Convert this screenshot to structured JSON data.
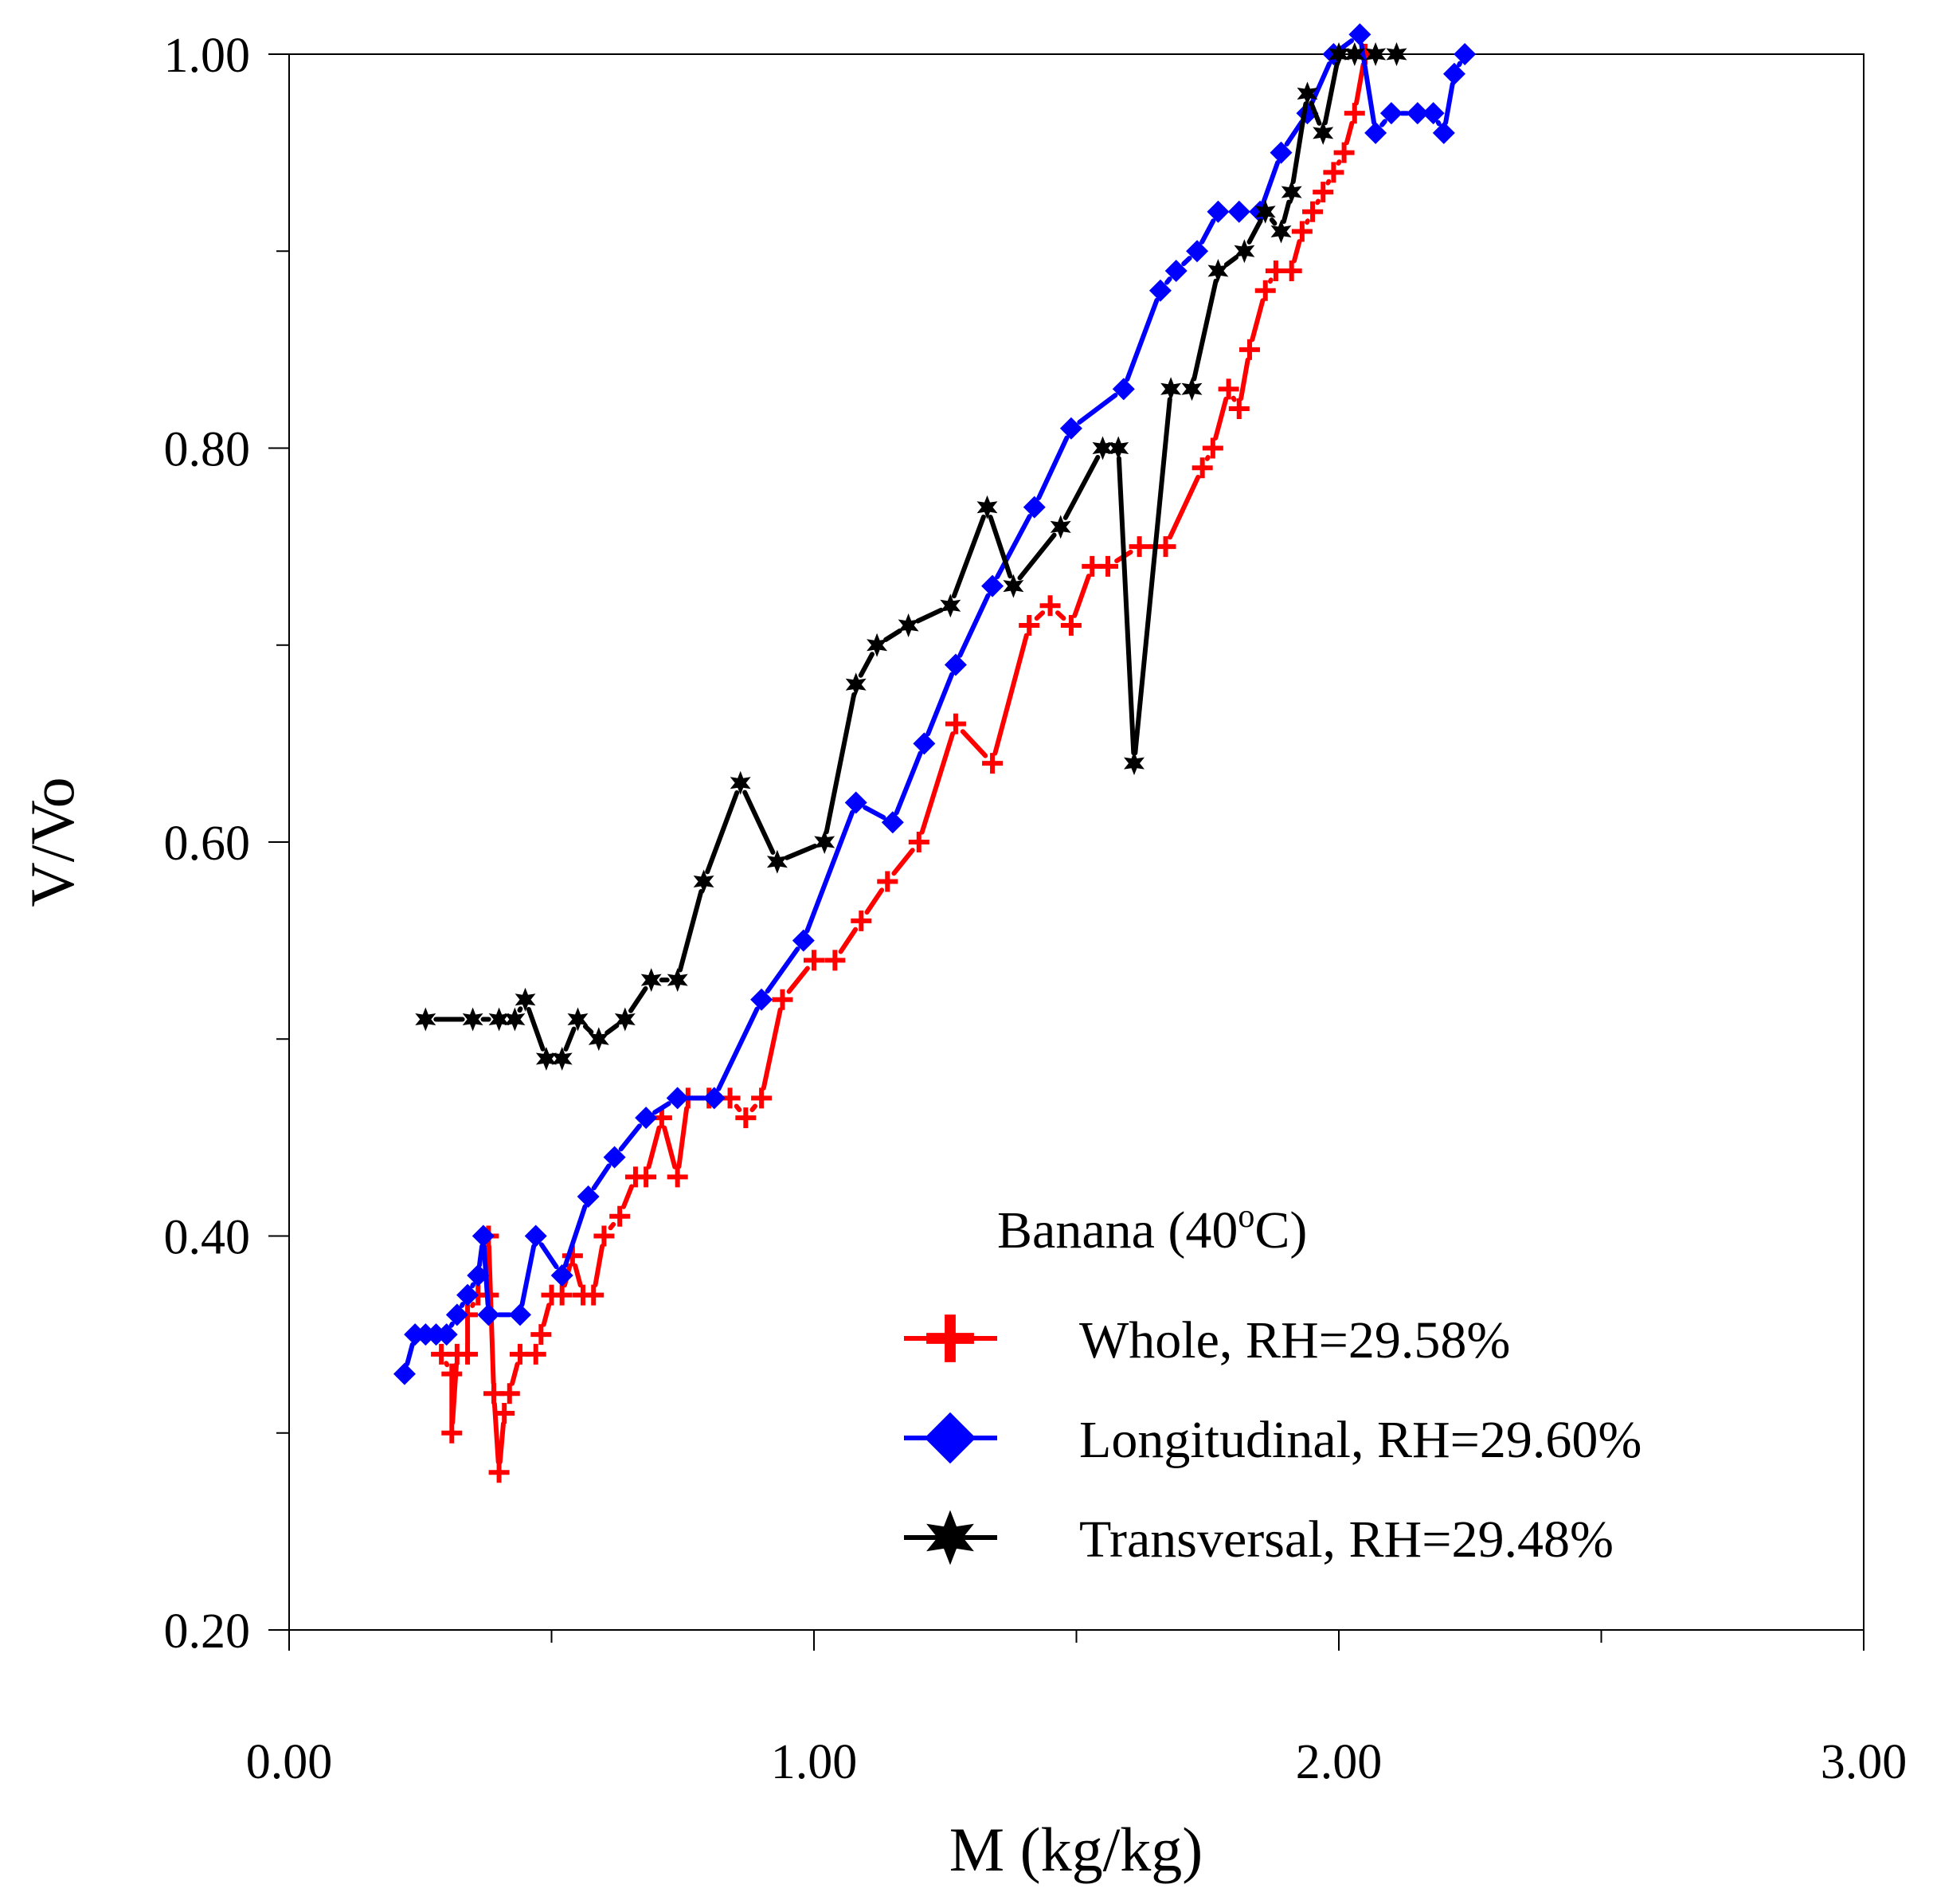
{
  "chart_data": {
    "type": "line",
    "title": "",
    "xlabel": "M (kg/kg)",
    "ylabel": "V/Vo",
    "xlim": [
      0,
      3
    ],
    "ylim": [
      0.2,
      1.0
    ],
    "x_ticks": [
      0,
      1,
      2,
      3
    ],
    "x_tick_labels": [
      "0.00",
      "1.00",
      "2.00",
      "3.00"
    ],
    "y_ticks": [
      0.2,
      0.4,
      0.6,
      0.8,
      1.0
    ],
    "y_tick_labels": [
      "0.20",
      "0.40",
      "0.60",
      "0.80",
      "1.00"
    ],
    "grid": false,
    "legend": {
      "position": "bottom-right",
      "title_main": "Banana (40",
      "title_sup": "o",
      "title_end": "C)"
    },
    "series": [
      {
        "name": "Whole, RH=29.58%",
        "color": "#ff0000",
        "marker": "plus",
        "points": [
          [
            0.29,
            0.34
          ],
          [
            0.31,
            0.33
          ],
          [
            0.31,
            0.3
          ],
          [
            0.32,
            0.34
          ],
          [
            0.34,
            0.34
          ],
          [
            0.34,
            0.36
          ],
          [
            0.36,
            0.37
          ],
          [
            0.38,
            0.37
          ],
          [
            0.38,
            0.4
          ],
          [
            0.39,
            0.32
          ],
          [
            0.4,
            0.28
          ],
          [
            0.41,
            0.31
          ],
          [
            0.42,
            0.32
          ],
          [
            0.44,
            0.34
          ],
          [
            0.47,
            0.34
          ],
          [
            0.48,
            0.35
          ],
          [
            0.5,
            0.37
          ],
          [
            0.52,
            0.37
          ],
          [
            0.54,
            0.39
          ],
          [
            0.56,
            0.37
          ],
          [
            0.58,
            0.37
          ],
          [
            0.6,
            0.4
          ],
          [
            0.63,
            0.41
          ],
          [
            0.66,
            0.43
          ],
          [
            0.68,
            0.43
          ],
          [
            0.71,
            0.46
          ],
          [
            0.74,
            0.43
          ],
          [
            0.76,
            0.47
          ],
          [
            0.8,
            0.47
          ],
          [
            0.84,
            0.47
          ],
          [
            0.87,
            0.46
          ],
          [
            0.9,
            0.47
          ],
          [
            0.94,
            0.52
          ],
          [
            1.0,
            0.54
          ],
          [
            1.04,
            0.54
          ],
          [
            1.09,
            0.56
          ],
          [
            1.14,
            0.58
          ],
          [
            1.2,
            0.6
          ],
          [
            1.27,
            0.66
          ],
          [
            1.34,
            0.64
          ],
          [
            1.41,
            0.71
          ],
          [
            1.45,
            0.72
          ],
          [
            1.49,
            0.71
          ],
          [
            1.53,
            0.74
          ],
          [
            1.56,
            0.74
          ],
          [
            1.62,
            0.75
          ],
          [
            1.67,
            0.75
          ],
          [
            1.74,
            0.79
          ],
          [
            1.76,
            0.8
          ],
          [
            1.79,
            0.83
          ],
          [
            1.81,
            0.82
          ],
          [
            1.83,
            0.85
          ],
          [
            1.86,
            0.88
          ],
          [
            1.88,
            0.89
          ],
          [
            1.91,
            0.89
          ],
          [
            1.93,
            0.91
          ],
          [
            1.95,
            0.92
          ],
          [
            1.97,
            0.93
          ],
          [
            1.99,
            0.94
          ],
          [
            2.01,
            0.95
          ],
          [
            2.03,
            0.97
          ],
          [
            2.05,
            1.0
          ]
        ]
      },
      {
        "name": "Longitudinal, RH=29.60%",
        "color": "#0000ff",
        "marker": "diamond",
        "points": [
          [
            0.22,
            0.33
          ],
          [
            0.24,
            0.35
          ],
          [
            0.26,
            0.35
          ],
          [
            0.28,
            0.35
          ],
          [
            0.3,
            0.35
          ],
          [
            0.32,
            0.36
          ],
          [
            0.34,
            0.37
          ],
          [
            0.36,
            0.38
          ],
          [
            0.37,
            0.4
          ],
          [
            0.38,
            0.36
          ],
          [
            0.44,
            0.36
          ],
          [
            0.47,
            0.4
          ],
          [
            0.52,
            0.38
          ],
          [
            0.57,
            0.42
          ],
          [
            0.62,
            0.44
          ],
          [
            0.68,
            0.46
          ],
          [
            0.74,
            0.47
          ],
          [
            0.81,
            0.47
          ],
          [
            0.9,
            0.52
          ],
          [
            0.98,
            0.55
          ],
          [
            1.08,
            0.62
          ],
          [
            1.15,
            0.61
          ],
          [
            1.21,
            0.65
          ],
          [
            1.27,
            0.69
          ],
          [
            1.34,
            0.73
          ],
          [
            1.42,
            0.77
          ],
          [
            1.49,
            0.81
          ],
          [
            1.59,
            0.83
          ],
          [
            1.66,
            0.88
          ],
          [
            1.69,
            0.89
          ],
          [
            1.73,
            0.9
          ],
          [
            1.77,
            0.92
          ],
          [
            1.81,
            0.92
          ],
          [
            1.85,
            0.92
          ],
          [
            1.89,
            0.95
          ],
          [
            1.94,
            0.97
          ],
          [
            1.99,
            1.0
          ],
          [
            2.04,
            1.01
          ],
          [
            2.07,
            0.96
          ],
          [
            2.1,
            0.97
          ],
          [
            2.15,
            0.97
          ],
          [
            2.18,
            0.97
          ],
          [
            2.2,
            0.96
          ],
          [
            2.22,
            0.99
          ],
          [
            2.24,
            1.0
          ]
        ]
      },
      {
        "name": "Transversal, RH=29.48%",
        "color": "#000000",
        "marker": "star",
        "points": [
          [
            0.26,
            0.51
          ],
          [
            0.35,
            0.51
          ],
          [
            0.4,
            0.51
          ],
          [
            0.43,
            0.51
          ],
          [
            0.45,
            0.52
          ],
          [
            0.49,
            0.49
          ],
          [
            0.52,
            0.49
          ],
          [
            0.55,
            0.51
          ],
          [
            0.59,
            0.5
          ],
          [
            0.64,
            0.51
          ],
          [
            0.69,
            0.53
          ],
          [
            0.74,
            0.53
          ],
          [
            0.79,
            0.58
          ],
          [
            0.86,
            0.63
          ],
          [
            0.93,
            0.59
          ],
          [
            1.02,
            0.6
          ],
          [
            1.08,
            0.68
          ],
          [
            1.12,
            0.7
          ],
          [
            1.18,
            0.71
          ],
          [
            1.26,
            0.72
          ],
          [
            1.33,
            0.77
          ],
          [
            1.38,
            0.73
          ],
          [
            1.47,
            0.76
          ],
          [
            1.55,
            0.8
          ],
          [
            1.58,
            0.8
          ],
          [
            1.61,
            0.64
          ],
          [
            1.68,
            0.83
          ],
          [
            1.72,
            0.83
          ],
          [
            1.77,
            0.89
          ],
          [
            1.82,
            0.9
          ],
          [
            1.86,
            0.92
          ],
          [
            1.89,
            0.91
          ],
          [
            1.91,
            0.93
          ],
          [
            1.94,
            0.98
          ],
          [
            1.97,
            0.96
          ],
          [
            2.0,
            1.0
          ],
          [
            2.03,
            1.0
          ],
          [
            2.07,
            1.0
          ],
          [
            2.11,
            1.0
          ]
        ]
      }
    ]
  }
}
